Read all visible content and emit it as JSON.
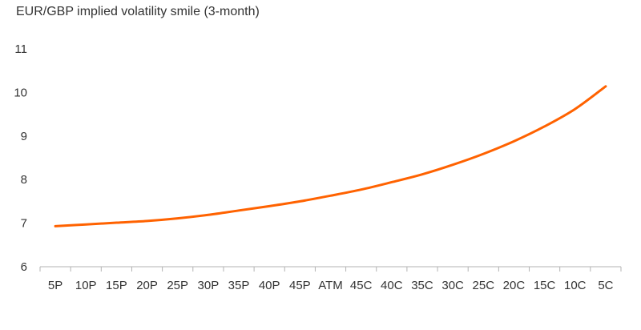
{
  "chart_data": {
    "type": "line",
    "title": "EUR/GBP implied volatility smile (3-month)",
    "xlabel": "",
    "ylabel": "",
    "categories": [
      "5P",
      "10P",
      "15P",
      "20P",
      "25P",
      "30P",
      "35P",
      "40P",
      "45P",
      "ATM",
      "45C",
      "40C",
      "35C",
      "30C",
      "25C",
      "20C",
      "15C",
      "10C",
      "5C"
    ],
    "series": [
      {
        "values": [
          6.93,
          6.97,
          7.01,
          7.05,
          7.11,
          7.19,
          7.29,
          7.39,
          7.5,
          7.63,
          7.77,
          7.94,
          8.12,
          8.34,
          8.59,
          8.88,
          9.22,
          9.62,
          10.14
        ],
        "color": "#ff6200"
      }
    ],
    "ylim": [
      6,
      11
    ],
    "yticks": [
      6,
      7,
      8,
      9,
      10,
      11
    ],
    "grid": false,
    "legend": "none",
    "axis_color": "#b3b3b3",
    "text_color": "#333333"
  }
}
